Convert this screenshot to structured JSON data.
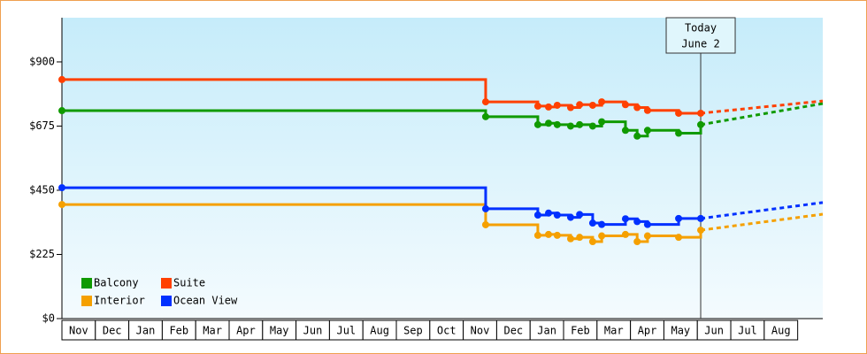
{
  "chart_data": {
    "type": "step-line",
    "ylim": [
      0,
      1055
    ],
    "yticks": [
      {
        "value": 0,
        "label": "$0"
      },
      {
        "value": 225,
        "label": "$225"
      },
      {
        "value": 450,
        "label": "$450"
      },
      {
        "value": 675,
        "label": "$675"
      },
      {
        "value": 900,
        "label": "$900"
      }
    ],
    "xlim": [
      0,
      22.75
    ],
    "months": [
      "Nov",
      "Dec",
      "Jan",
      "Feb",
      "Mar",
      "Apr",
      "May",
      "Jun",
      "Jul",
      "Aug",
      "Sep",
      "Oct",
      "Nov",
      "Dec",
      "Jan",
      "Feb",
      "Mar",
      "Apr",
      "May",
      "Jun",
      "Jul",
      "Aug"
    ],
    "x": [
      0,
      12.67,
      14.23,
      14.55,
      14.81,
      15.21,
      15.48,
      15.87,
      16.14,
      16.85,
      17.2,
      17.51,
      18.44,
      19.1
    ],
    "forecast_x": [
      19.1,
      22.75
    ],
    "today": {
      "x": 19.1,
      "label": "Today",
      "date": "June 2"
    },
    "legend": "lower left",
    "series": [
      {
        "name": "Balcony",
        "color": "#109a00",
        "values": [
          729,
          708,
          680,
          685,
          680,
          675,
          680,
          675,
          690,
          660,
          640,
          660,
          650,
          680
        ],
        "forecast_values": [
          680,
          754
        ]
      },
      {
        "name": "Suite",
        "color": "#ff4000",
        "values": [
          838,
          760,
          745,
          742,
          748,
          740,
          750,
          748,
          760,
          750,
          740,
          730,
          720,
          720
        ],
        "forecast_values": [
          720,
          763
        ]
      },
      {
        "name": "Interior",
        "color": "#f5a000",
        "values": [
          400,
          329,
          292,
          295,
          292,
          280,
          285,
          270,
          290,
          295,
          270,
          290,
          285,
          310
        ],
        "forecast_values": [
          310,
          366
        ]
      },
      {
        "name": "Ocean View",
        "color": "#0030ff",
        "values": [
          459,
          385,
          363,
          370,
          363,
          355,
          365,
          335,
          330,
          350,
          340,
          330,
          351,
          351
        ],
        "forecast_values": [
          351,
          407
        ]
      }
    ]
  }
}
